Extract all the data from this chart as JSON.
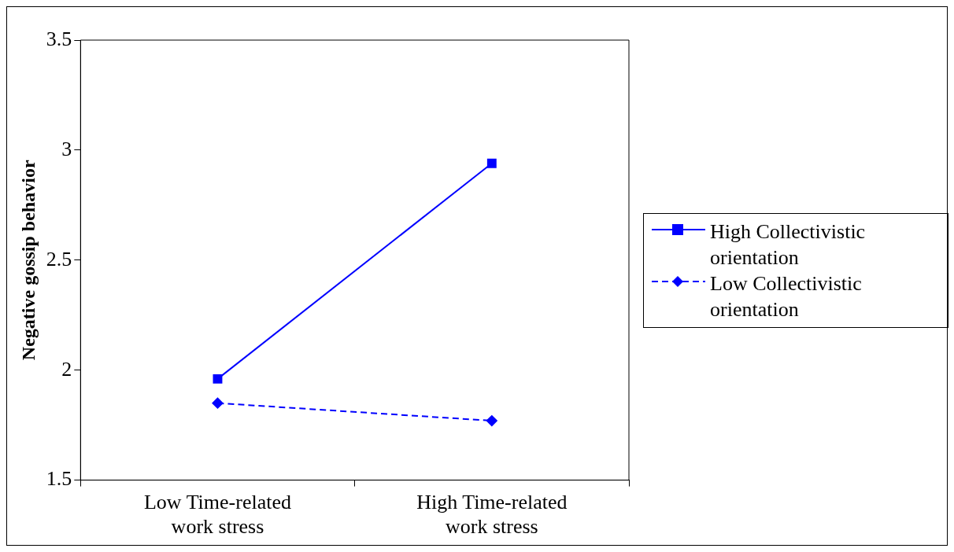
{
  "chart_data": {
    "type": "line",
    "ylabel": "Negative gossip behavior",
    "categories": [
      "Low Time-related work stress",
      "High Time-related work stress"
    ],
    "series": [
      {
        "name": "High Collectivistic orientation",
        "color": "#0000ff",
        "values": [
          1.96,
          2.94
        ],
        "marker": "square",
        "line_style": "solid"
      },
      {
        "name": "Low Collectivistic orientation",
        "color": "#0000ff",
        "values": [
          1.85,
          1.77
        ],
        "marker": "diamond",
        "line_style": "dashed"
      }
    ],
    "ylim": [
      1.5,
      3.5
    ],
    "yticks": [
      1.5,
      2,
      2.5,
      3,
      3.5
    ],
    "legend": "right"
  }
}
